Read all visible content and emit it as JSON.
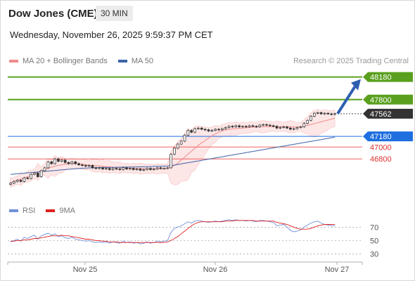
{
  "header": {
    "title": "Dow Jones (CME)",
    "timeframe": "30 MIN",
    "datetime": "Wednesday, November 26, 2025 9:59:37 PM CET",
    "credit": "Research © 2025 Trading Central"
  },
  "legend": {
    "ma20": {
      "label": "MA 20 + Bollinger Bands",
      "color": "#f08a8a"
    },
    "ma50": {
      "label": "MA 50",
      "color": "#3c64a8"
    }
  },
  "rsi_legend": {
    "rsi": {
      "label": "RSI",
      "color": "#6f8fd8"
    },
    "ma9": {
      "label": "9MA",
      "color": "#e02020"
    }
  },
  "colors": {
    "resistance": "#5aa01e",
    "pivot": "#1f6fe0",
    "support": "#f06060",
    "last_price": "#333333",
    "arrow": "#2f5fb0"
  },
  "chart_data": [
    {
      "type": "candlestick",
      "title": "",
      "x_ticks": [
        "Nov 25",
        "Nov 26",
        "Nov 27"
      ],
      "ylim": [
        46080,
        48330
      ],
      "close": [
        46390,
        46420,
        46440,
        46420,
        46480,
        46470,
        46540,
        46560,
        46500,
        46600,
        46650,
        46750,
        46720,
        46800,
        46760,
        46780,
        46740,
        46720,
        46750,
        46720,
        46700,
        46690,
        46680,
        46690,
        46650,
        46640,
        46650,
        46630,
        46640,
        46620,
        46640,
        46630,
        46620,
        46650,
        46630,
        46640,
        46620,
        46630,
        46610,
        46620,
        46640,
        46620,
        46630,
        46650,
        46640,
        46640,
        46650,
        46880,
        46980,
        47050,
        47100,
        47200,
        47280,
        47250,
        47310,
        47320,
        47300,
        47290,
        47270,
        47280,
        47300,
        47290,
        47310,
        47330,
        47350,
        47340,
        47360,
        47340,
        47350,
        47340,
        47360,
        47350,
        47340,
        47370,
        47380,
        47370,
        47360,
        47350,
        47320,
        47330,
        47340,
        47320,
        47300,
        47310,
        47330,
        47340,
        47400,
        47450,
        47520,
        47570,
        47580,
        47560,
        47570,
        47560,
        47550,
        47562
      ],
      "ma20": [
        46400,
        46420,
        46440,
        46460,
        46480,
        46500,
        46520,
        46550,
        46580,
        46600,
        46620,
        46640,
        46660,
        46680,
        46690,
        46700,
        46710,
        46720,
        46720,
        46720,
        46715,
        46710,
        46700,
        46695,
        46690,
        46685,
        46680,
        46675,
        46670,
        46665,
        46660,
        46655,
        46650,
        46648,
        46645,
        46642,
        46640,
        46638,
        46636,
        46635,
        46634,
        46633,
        46632,
        46632,
        46633,
        46634,
        46640,
        46660,
        46690,
        46730,
        46780,
        46830,
        46880,
        46930,
        46980,
        47030,
        47070,
        47110,
        47150,
        47190,
        47220,
        47250,
        47275,
        47290,
        47300,
        47305,
        47310,
        47315,
        47320,
        47325,
        47330,
        47335,
        47338,
        47340,
        47342,
        47344,
        47345,
        47346,
        47345,
        47344,
        47343,
        47342,
        47340,
        47338,
        47336,
        47340,
        47350,
        47365,
        47380,
        47395,
        47410,
        47425,
        47440,
        47455,
        47470,
        47485
      ],
      "ma50": [
        46540,
        46545,
        46550,
        46555,
        46560,
        46565,
        46570,
        46575,
        46580,
        46585,
        46590,
        46595,
        46600,
        46605,
        46610,
        46615,
        46620,
        46625,
        46630,
        46634,
        46638,
        46642,
        46645,
        46648,
        46650,
        46652,
        46654,
        46655,
        46656,
        46657,
        46658,
        46659,
        46660,
        46661,
        46662,
        46663,
        46664,
        46665,
        46666,
        46667,
        46668,
        46670,
        46672,
        46674,
        46676,
        46678,
        46682,
        46688,
        46696,
        46706,
        46716,
        46726,
        46736,
        46746,
        46756,
        46766,
        46776,
        46786,
        46796,
        46806,
        46816,
        46826,
        46836,
        46846,
        46856,
        46866,
        46876,
        46886,
        46896,
        46906,
        46916,
        46926,
        46936,
        46946,
        46956,
        46966,
        46976,
        46986,
        46996,
        47006,
        47016,
        47026,
        47036,
        47046,
        47056,
        47066,
        47076,
        47086,
        47096,
        47106,
        47116,
        47126,
        47136,
        47146,
        47156,
        47166
      ],
      "levels": [
        {
          "price": 48180,
          "label": "48180",
          "kind": "resistance"
        },
        {
          "price": 47800,
          "label": "47800",
          "kind": "resistance"
        },
        {
          "price": 47562,
          "label": "47562",
          "kind": "last"
        },
        {
          "price": 47180,
          "label": "47180",
          "kind": "pivot"
        },
        {
          "price": 47000,
          "label": "47000",
          "kind": "support"
        },
        {
          "price": 46800,
          "label": "46800",
          "kind": "support"
        }
      ]
    },
    {
      "type": "line",
      "title": "RSI",
      "ylim": [
        20,
        85
      ],
      "y_ticks": [
        "70",
        "50",
        "30"
      ],
      "series": [
        {
          "name": "RSI",
          "values": [
            48,
            50,
            52,
            49,
            55,
            53,
            56,
            58,
            52,
            57,
            59,
            61,
            58,
            60,
            56,
            57,
            54,
            53,
            55,
            52,
            51,
            50,
            49,
            50,
            48,
            47,
            48,
            47,
            48,
            46,
            48,
            47,
            46,
            49,
            47,
            48,
            46,
            47,
            45,
            46,
            48,
            46,
            47,
            49,
            48,
            49,
            50,
            62,
            68,
            70,
            72,
            75,
            78,
            76,
            79,
            80,
            79,
            78,
            77,
            78,
            79,
            78,
            79,
            80,
            81,
            80,
            81,
            80,
            80,
            79,
            80,
            79,
            78,
            80,
            80,
            79,
            78,
            77,
            72,
            73,
            74,
            70,
            65,
            63,
            64,
            66,
            70,
            73,
            76,
            78,
            79,
            76,
            74,
            73,
            72,
            72
          ]
        },
        {
          "name": "9MA",
          "values": [
            49,
            49,
            50,
            50,
            51,
            51,
            52,
            53,
            53,
            54,
            55,
            56,
            57,
            57,
            57,
            58,
            57,
            57,
            56,
            55,
            54,
            53,
            52,
            52,
            51,
            50,
            50,
            49,
            49,
            48,
            48,
            48,
            47,
            47,
            47,
            47,
            47,
            47,
            47,
            47,
            47,
            47,
            47,
            47,
            47,
            47,
            48,
            50,
            53,
            56,
            60,
            64,
            68,
            72,
            75,
            77,
            78,
            78,
            78,
            78,
            78,
            78,
            78,
            79,
            79,
            79,
            80,
            80,
            80,
            80,
            80,
            80,
            79,
            79,
            79,
            79,
            79,
            79,
            77,
            76,
            75,
            74,
            72,
            70,
            68,
            67,
            67,
            67,
            68,
            70,
            72,
            73,
            74,
            74,
            74,
            74
          ]
        }
      ]
    }
  ]
}
